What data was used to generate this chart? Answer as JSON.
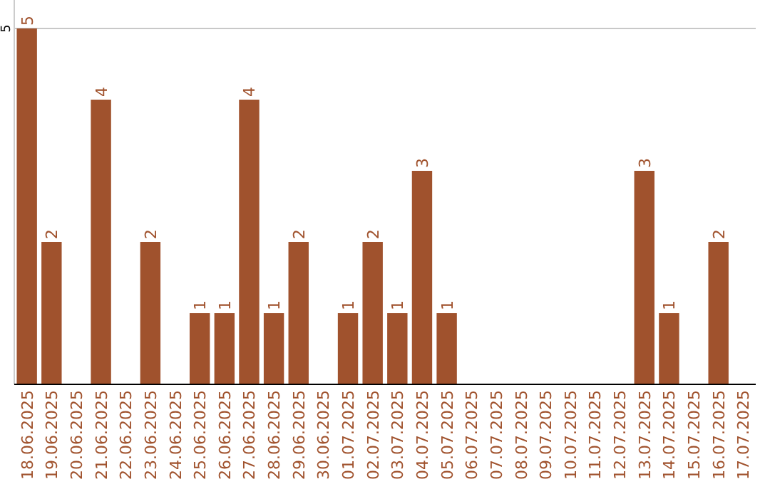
{
  "chart_data": {
    "type": "bar",
    "categories": [
      "18.06.2025",
      "19.06.2025",
      "20.06.2025",
      "21.06.2025",
      "22.06.2025",
      "23.06.2025",
      "24.06.2025",
      "25.06.2025",
      "26.06.2025",
      "27.06.2025",
      "28.06.2025",
      "29.06.2025",
      "30.06.2025",
      "01.07.2025",
      "02.07.2025",
      "03.07.2025",
      "04.07.2025",
      "05.07.2025",
      "06.07.2025",
      "07.07.2025",
      "08.07.2025",
      "09.07.2025",
      "10.07.2025",
      "11.07.2025",
      "12.07.2025",
      "13.07.2025",
      "14.07.2025",
      "15.07.2025",
      "16.07.2025",
      "17.07.2025"
    ],
    "values": [
      5,
      2,
      0,
      4,
      0,
      2,
      0,
      1,
      1,
      4,
      1,
      2,
      0,
      1,
      2,
      1,
      3,
      1,
      0,
      0,
      0,
      0,
      0,
      0,
      0,
      3,
      1,
      0,
      2,
      0
    ],
    "value_labels": [
      "5",
      "2",
      null,
      "4",
      null,
      "2",
      null,
      "1",
      "1",
      "4",
      "1",
      "2",
      null,
      "1",
      "2",
      "1",
      "3",
      "1",
      null,
      null,
      null,
      null,
      null,
      null,
      null,
      "3",
      "1",
      null,
      "2",
      null
    ],
    "color": "#a0522d",
    "ylim": [
      0,
      5.4
    ],
    "yticks": [
      5
    ],
    "grid": "y"
  }
}
